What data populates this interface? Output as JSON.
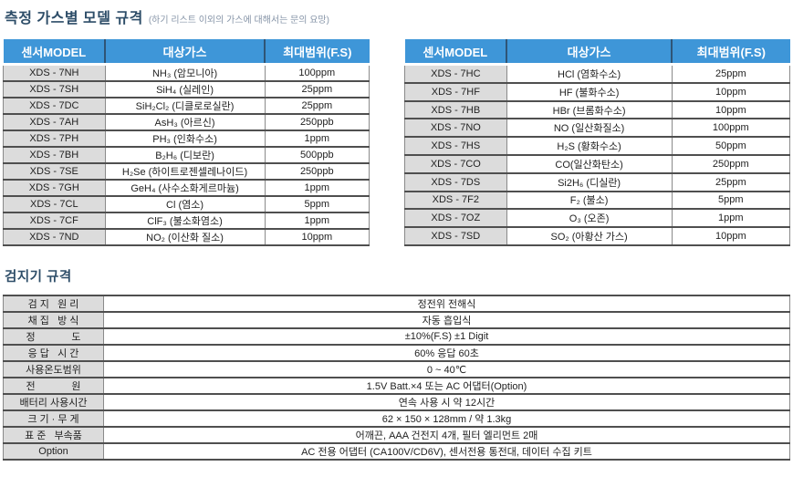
{
  "colors": {
    "header_bg": "#3e96d8",
    "header_text": "#ffffff",
    "model_column_bg": "#dcdcdc",
    "title_text": "#2d4d68",
    "note_text": "#8795a8",
    "border_dark": "#4f4f4f"
  },
  "section_models": {
    "title": "측정 가스별 모델 규격",
    "note": "(하기 리스트 이외의 가스에 대해서는 문의 요망)",
    "headers": {
      "model": "센서MODEL",
      "gas": "대상가스",
      "range": "최대범위(F.S)"
    },
    "left_rows": [
      {
        "model": "XDS - 7NH",
        "gas": "NH₃ (암모니아)",
        "range": "100ppm"
      },
      {
        "model": "XDS - 7SH",
        "gas": "SiH₄ (실레인)",
        "range": "25ppm"
      },
      {
        "model": "XDS - 7DC",
        "gas": "SiH₂Cl₂ (디클로로실란)",
        "range": "25ppm"
      },
      {
        "model": "XDS - 7AH",
        "gas": "AsH₃ (아르신)",
        "range": "250ppb"
      },
      {
        "model": "XDS - 7PH",
        "gas": "PH₃ (인화수소)",
        "range": "1ppm"
      },
      {
        "model": "XDS - 7BH",
        "gas": "B₂H₆ (디보란)",
        "range": "500ppb"
      },
      {
        "model": "XDS - 7SE",
        "gas": "H₂Se (하이트로젠셀레나이드)",
        "range": "250ppb"
      },
      {
        "model": "XDS - 7GH",
        "gas": "GeH₄ (사수소화게르마늄)",
        "range": "1ppm"
      },
      {
        "model": "XDS - 7CL",
        "gas": "Cl (염소)",
        "range": "5ppm"
      },
      {
        "model": "XDS - 7CF",
        "gas": "ClF₃ (불소화염소)",
        "range": "1ppm"
      },
      {
        "model": "XDS - 7ND",
        "gas": "NO₂ (이산화 질소)",
        "range": "10ppm"
      }
    ],
    "right_rows": [
      {
        "model": "XDS - 7HC",
        "gas": "HCl (염화수소)",
        "range": "25ppm"
      },
      {
        "model": "XDS - 7HF",
        "gas": "HF (불화수소)",
        "range": "10ppm"
      },
      {
        "model": "XDS - 7HB",
        "gas": "HBr (브롬화수소)",
        "range": "10ppm"
      },
      {
        "model": "XDS - 7NO",
        "gas": "NO (일산화질소)",
        "range": "100ppm"
      },
      {
        "model": "XDS - 7HS",
        "gas": "H₂S (황화수소)",
        "range": "50ppm"
      },
      {
        "model": "XDS - 7CO",
        "gas": "CO(일산화탄소)",
        "range": "250ppm"
      },
      {
        "model": "XDS - 7DS",
        "gas": "Si2H₆ (디실란)",
        "range": "25ppm"
      },
      {
        "model": "XDS - 7F2",
        "gas": "F₂ (불소)",
        "range": "5ppm"
      },
      {
        "model": "XDS - 7OZ",
        "gas": "O₃ (오존)",
        "range": "1ppm"
      },
      {
        "model": "XDS - 7SD",
        "gas": "SO₂ (아황산 가스)",
        "range": "10ppm"
      }
    ]
  },
  "section_specs": {
    "title": "검지기 규격",
    "rows": [
      {
        "label": "검 지   원 리",
        "value": "정전위 전해식"
      },
      {
        "label": "채 집   방 식",
        "value": "자동 흡입식"
      },
      {
        "label": "정             도",
        "value": "±10%(F.S) ±1 Digit"
      },
      {
        "label": "응 답   시 간",
        "value": "60% 응답 60초"
      },
      {
        "label": "사용온도범위",
        "value": "0 ~ 40℃"
      },
      {
        "label": "전             원",
        "value": "1.5V Batt.×4 또는 AC 어댑터(Option)"
      },
      {
        "label": "배터리 사용시간",
        "value": "연속 사용 시 약 12시간"
      },
      {
        "label": "크 기 · 무 게",
        "value": "62 × 150 × 128mm / 약 1.3kg"
      },
      {
        "label": "표 준   부속품",
        "value": "어깨끈, AAA 건전지 4개, 필터 엘리먼트 2매"
      },
      {
        "label": "Option",
        "value": "AC 전용 어댑터 (CA100V/CD6V), 센서전용 통전대, 데이터 수집 키트"
      }
    ]
  }
}
